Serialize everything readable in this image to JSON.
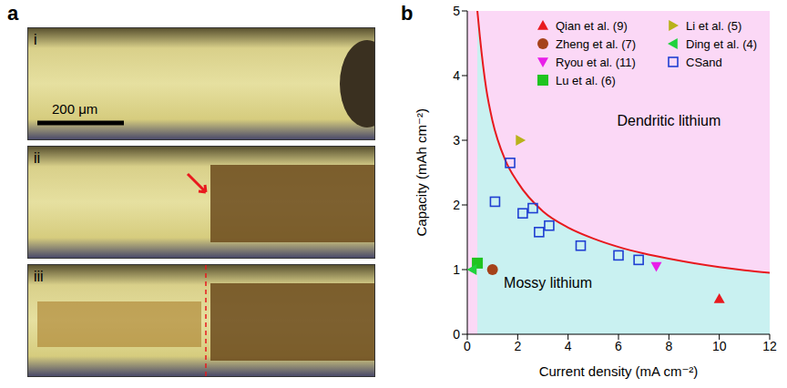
{
  "panel_a": {
    "panel": "a",
    "images": [
      "i",
      "ii",
      "iii"
    ],
    "scale_bar": "200 μm"
  },
  "chart_data": {
    "type": "scatter",
    "panel": "b",
    "x_label": "Current density (mA cm⁻²)",
    "y_label": "Capacity (mAh cm⁻²)",
    "xlim": [
      0,
      12
    ],
    "ylim": [
      0,
      5
    ],
    "xticks": [
      0,
      2,
      4,
      6,
      8,
      10,
      12
    ],
    "yticks": [
      0,
      1,
      2,
      3,
      4,
      5
    ],
    "grid": false,
    "legend": "upper right",
    "regions": [
      {
        "text": "Dendritic lithium",
        "x": 8,
        "y": 3.3,
        "color": "#fbd8f6"
      },
      {
        "text": "Mossy lithium",
        "x": 3.2,
        "y": 0.8,
        "color": "#c9f1f1"
      }
    ],
    "boundary": {
      "type": "line",
      "color": "#e8191e",
      "x": [
        0.4,
        0.5,
        0.75,
        1,
        1.5,
        2,
        3,
        4,
        5,
        6,
        7,
        8,
        9,
        10,
        11,
        12
      ],
      "values": [
        5.0,
        4.6,
        3.8,
        3.3,
        2.7,
        2.35,
        1.9,
        1.65,
        1.48,
        1.35,
        1.25,
        1.17,
        1.1,
        1.04,
        0.99,
        0.95
      ]
    },
    "series": [
      {
        "name": "Qian et al. (9)",
        "color": "#e8191e",
        "marker": "triangle_up",
        "x": [
          10
        ],
        "values": [
          0.55
        ]
      },
      {
        "name": "Zheng et al. (7)",
        "color": "#a5421a",
        "marker": "circle",
        "x": [
          1
        ],
        "values": [
          1.0
        ]
      },
      {
        "name": "Ryou et al. (11)",
        "color": "#e81ee8",
        "marker": "triangle_down",
        "x": [
          7.5
        ],
        "values": [
          1.05
        ]
      },
      {
        "name": "Lu et al. (6)",
        "color": "#1fc41f",
        "marker": "square",
        "x": [
          0.4
        ],
        "values": [
          1.1
        ]
      },
      {
        "name": "Li et al. (5)",
        "color": "#b8b21a",
        "marker": "triangle_right",
        "x": [
          2.1
        ],
        "values": [
          3.0
        ]
      },
      {
        "name": "Ding et al. (4)",
        "color": "#1fd23c",
        "marker": "triangle_left",
        "x": [
          0.2
        ],
        "values": [
          1.0
        ]
      },
      {
        "name": "CSand",
        "color": "#1f3fd2",
        "marker": "open_square",
        "x": [
          1.7,
          1.1,
          2.2,
          2.6,
          2.85,
          3.25,
          4.5,
          6.0,
          6.8
        ],
        "values": [
          2.65,
          2.05,
          1.87,
          1.95,
          1.58,
          1.68,
          1.37,
          1.22,
          1.15
        ]
      }
    ]
  }
}
